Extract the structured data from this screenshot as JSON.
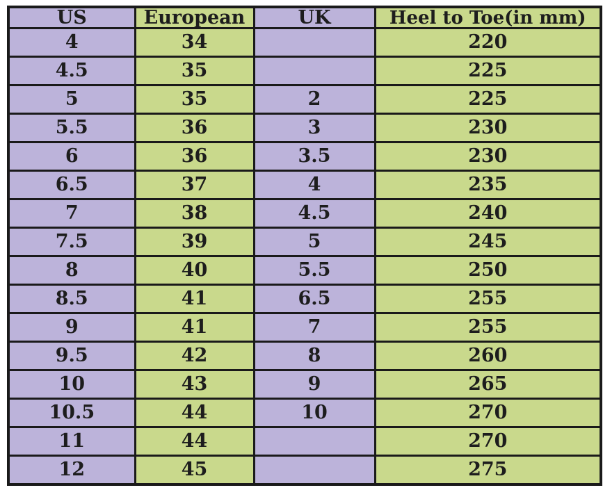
{
  "chart_data": {
    "type": "table",
    "columns": [
      "US",
      "European",
      "UK",
      "Heel to Toe(in mm)"
    ],
    "rows": [
      [
        "4",
        "34",
        "",
        "220"
      ],
      [
        "4.5",
        "35",
        "",
        "225"
      ],
      [
        "5",
        "35",
        "2",
        "225"
      ],
      [
        "5.5",
        "36",
        "3",
        "230"
      ],
      [
        "6",
        "36",
        "3.5",
        "230"
      ],
      [
        "6.5",
        "37",
        "4",
        "235"
      ],
      [
        "7",
        "38",
        "4.5",
        "240"
      ],
      [
        "7.5",
        "39",
        "5",
        "245"
      ],
      [
        "8",
        "40",
        "5.5",
        "250"
      ],
      [
        "8.5",
        "41",
        "6.5",
        "255"
      ],
      [
        "9",
        "41",
        "7",
        "255"
      ],
      [
        "9.5",
        "42",
        "8",
        "260"
      ],
      [
        "10",
        "43",
        "9",
        "265"
      ],
      [
        "10.5",
        "44",
        "10",
        "270"
      ],
      [
        "11",
        "44",
        "",
        "270"
      ],
      [
        "12",
        "45",
        "",
        "275"
      ]
    ],
    "layout": {
      "column_colors": [
        "#bcb3da",
        "#c9d98c",
        "#bcb3da",
        "#c9d98c"
      ],
      "border_color": "#1a1a1a",
      "text_color": "#1d1d1d",
      "background_color": "#ffffff",
      "grid": true
    }
  }
}
